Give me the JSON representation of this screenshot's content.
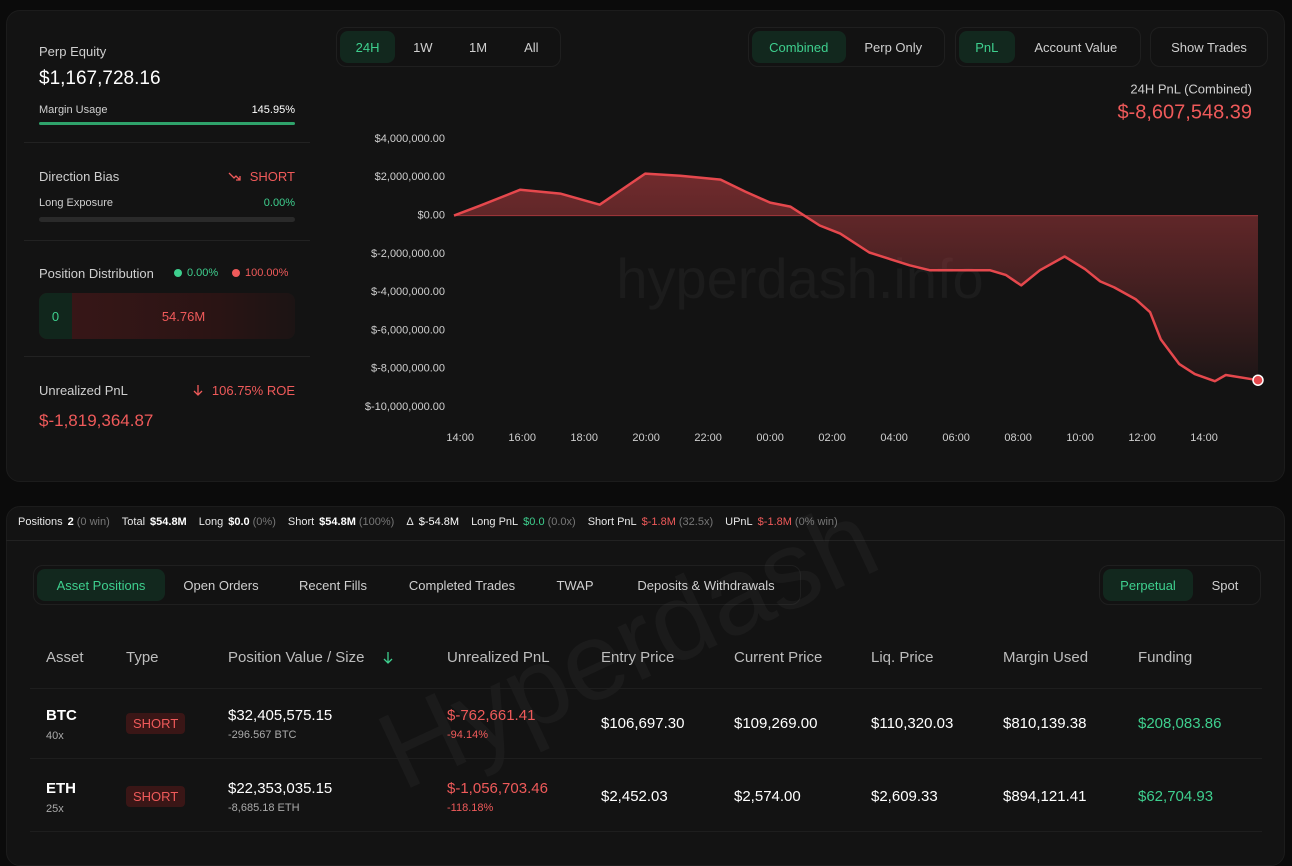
{
  "summary": {
    "perp_equity": {
      "label": "Perp Equity",
      "value": "$1,167,728.16"
    },
    "margin_usage": {
      "label": "Margin Usage",
      "value": "145.95%"
    },
    "direction_bias": {
      "label": "Direction Bias",
      "value": "SHORT"
    },
    "long_exposure": {
      "label": "Long Exposure",
      "value": "0.00%"
    },
    "position_distribution": {
      "label": "Position Distribution",
      "long": "0.00%",
      "short": "100.00%",
      "bar_long": "0",
      "bar_short": "54.76M"
    },
    "unrealized_pnl": {
      "label": "Unrealized PnL",
      "roe": "106.75% ROE",
      "value": "$-1,819,364.87"
    }
  },
  "chart_tabs": {
    "range": [
      "24H",
      "1W",
      "1M",
      "All"
    ],
    "mode": [
      "Combined",
      "Perp Only"
    ],
    "metric": [
      "PnL",
      "Account Value"
    ],
    "toggle": "Show Trades"
  },
  "chart_data": {
    "type": "area",
    "title": "24H PnL (Combined)",
    "current_value": "$-8,607,548.39",
    "watermark": "hyperdash.info",
    "color": "#e5484d",
    "grid": false,
    "x": [
      -0.2,
      0.65,
      1.94,
      3.23,
      4.5,
      5.97,
      7.1,
      8.4,
      9.2,
      10,
      10.65,
      11.6,
      12.26,
      13.2,
      14.5,
      15.16,
      17.1,
      17.6,
      18.1,
      18.7,
      19.5,
      20.16,
      20.65,
      21.1,
      21.8,
      22.26,
      22.6,
      23.2,
      23.7,
      24.35,
      24.7,
      25.74
    ],
    "values": [
      0,
      520000,
      1350000,
      1150000,
      570000,
      2190000,
      2080000,
      1880000,
      1250000,
      680000,
      470000,
      -520000,
      -940000,
      -1930000,
      -2600000,
      -2860000,
      -2860000,
      -3100000,
      -3650000,
      -2860000,
      -2140000,
      -2800000,
      -3440000,
      -3750000,
      -4380000,
      -5050000,
      -6460000,
      -7760000,
      -8280000,
      -8650000,
      -8330000,
      -8600000
    ],
    "xlim": [
      -0.2,
      25.74
    ],
    "ylim": [
      -10000000,
      4000000
    ],
    "xticks": [
      {
        "value": 0,
        "label": "14:00"
      },
      {
        "value": 2,
        "label": "16:00"
      },
      {
        "value": 4,
        "label": "18:00"
      },
      {
        "value": 6,
        "label": "20:00"
      },
      {
        "value": 8,
        "label": "22:00"
      },
      {
        "value": 10,
        "label": "00:00"
      },
      {
        "value": 12,
        "label": "02:00"
      },
      {
        "value": 14,
        "label": "04:00"
      },
      {
        "value": 16,
        "label": "06:00"
      },
      {
        "value": 18,
        "label": "08:00"
      },
      {
        "value": 20,
        "label": "10:00"
      },
      {
        "value": 22,
        "label": "12:00"
      },
      {
        "value": 24,
        "label": "14:00"
      }
    ],
    "yticks": [
      {
        "value": 4000000,
        "label": "$4,000,000.00"
      },
      {
        "value": 2000000,
        "label": "$2,000,000.00"
      },
      {
        "value": 0,
        "label": "$0.00"
      },
      {
        "value": -2000000,
        "label": "$-2,000,000.00"
      },
      {
        "value": -4000000,
        "label": "$-4,000,000.00"
      },
      {
        "value": -6000000,
        "label": "$-6,000,000.00"
      },
      {
        "value": -8000000,
        "label": "$-8,000,000.00"
      },
      {
        "value": -10000000,
        "label": "$-10,000,000.00"
      }
    ]
  },
  "stats": [
    {
      "label": "Positions",
      "value": "2",
      "note": "(0 win)"
    },
    {
      "label": "Total",
      "value": "$54.8M"
    },
    {
      "label": "Long",
      "value": "$0.0",
      "note": "(0%)"
    },
    {
      "label": "Short",
      "value": "$54.8M",
      "note": "(100%)"
    },
    {
      "label": "Δ",
      "value": "$-54.8M"
    },
    {
      "label": "Long PnL",
      "value": "$0.0",
      "note": "(0.0x)"
    },
    {
      "label": "Short PnL",
      "value": "$-1.8M",
      "note": "(32.5x)"
    },
    {
      "label": "UPnL",
      "value": "$-1.8M",
      "note": "(0% win)"
    }
  ],
  "tabs": {
    "main": [
      "Asset Positions",
      "Open Orders",
      "Recent Fills",
      "Completed Trades",
      "TWAP",
      "Deposits & Withdrawals"
    ],
    "market": [
      "Perpetual",
      "Spot"
    ]
  },
  "watermark_table": "Hyperdash",
  "table": {
    "headers": [
      "Asset",
      "Type",
      "Position Value / Size",
      "Unrealized PnL",
      "Entry Price",
      "Current Price",
      "Liq. Price",
      "Margin Used",
      "Funding"
    ],
    "rows": [
      {
        "asset": "BTC",
        "leverage": "40x",
        "type": "SHORT",
        "position_value": "$32,405,575.15",
        "size": "-296.567 BTC",
        "unrealized_pnl": "$-762,661.41",
        "pnl_pct": "-94.14%",
        "entry_price": "$106,697.30",
        "current_price": "$109,269.00",
        "liq_price": "$110,320.03",
        "margin_used": "$810,139.38",
        "funding": "$208,083.86"
      },
      {
        "asset": "ETH",
        "leverage": "25x",
        "type": "SHORT",
        "position_value": "$22,353,035.15",
        "size": "-8,685.18 ETH",
        "unrealized_pnl": "$-1,056,703.46",
        "pnl_pct": "-118.18%",
        "entry_price": "$2,452.03",
        "current_price": "$2,574.00",
        "liq_price": "$2,609.33",
        "margin_used": "$894,121.41",
        "funding": "$62,704.93"
      }
    ]
  }
}
